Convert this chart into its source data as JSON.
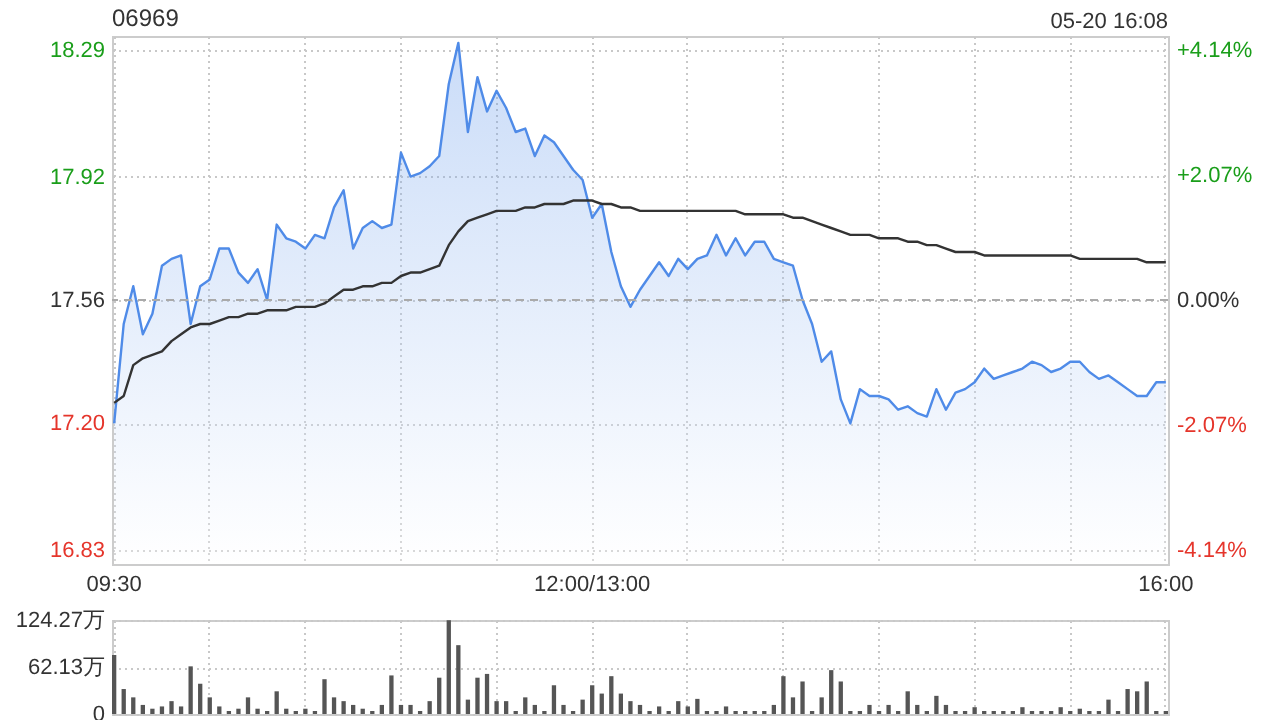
{
  "chart_data": [
    {
      "type": "line",
      "title": "06969",
      "annotations": [
        "05-20 16:08"
      ],
      "categories": [
        "09:30",
        null,
        null,
        null,
        null,
        null,
        null,
        null,
        null,
        null,
        null,
        null,
        null,
        null,
        null,
        null,
        null,
        null,
        null,
        null,
        null,
        null,
        null,
        null,
        null,
        null,
        null,
        null,
        null,
        null,
        null,
        null,
        null,
        null,
        null,
        null,
        null,
        null,
        null,
        null,
        null,
        null,
        null,
        null,
        null,
        null,
        null,
        null,
        null,
        null,
        "12:00/13:00",
        null,
        null,
        null,
        null,
        null,
        null,
        null,
        null,
        null,
        null,
        null,
        null,
        null,
        null,
        null,
        null,
        null,
        null,
        null,
        null,
        null,
        null,
        null,
        null,
        null,
        null,
        null,
        null,
        null,
        null,
        null,
        null,
        null,
        null,
        null,
        null,
        null,
        null,
        null,
        null,
        null,
        null,
        null,
        null,
        null,
        null,
        null,
        null,
        null,
        null,
        null,
        null,
        null,
        null,
        null,
        null,
        null,
        null,
        null,
        "16:00"
      ],
      "series": [
        {
          "type": "area",
          "color": "#4f8be8",
          "values": [
            17.2,
            17.49,
            17.6,
            17.46,
            17.52,
            17.66,
            17.68,
            17.69,
            17.49,
            17.6,
            17.62,
            17.71,
            17.71,
            17.64,
            17.61,
            17.65,
            17.56,
            17.78,
            17.74,
            17.73,
            17.71,
            17.75,
            17.74,
            17.83,
            17.88,
            17.71,
            17.77,
            17.79,
            17.77,
            17.78,
            17.99,
            17.92,
            17.93,
            17.95,
            17.98,
            18.19,
            18.31,
            18.05,
            18.21,
            18.11,
            18.17,
            18.12,
            18.05,
            18.06,
            17.98,
            18.04,
            18.02,
            17.98,
            17.94,
            17.91,
            17.8,
            17.84,
            17.7,
            17.6,
            17.54,
            17.59,
            17.63,
            17.67,
            17.63,
            17.68,
            17.65,
            17.68,
            17.69,
            17.75,
            17.69,
            17.74,
            17.69,
            17.73,
            17.73,
            17.68,
            17.67,
            17.66,
            17.56,
            17.49,
            17.38,
            17.41,
            17.27,
            17.2,
            17.3,
            17.28,
            17.28,
            17.27,
            17.24,
            17.25,
            17.23,
            17.22,
            17.3,
            17.24,
            17.29,
            17.3,
            17.32,
            17.36,
            17.33,
            17.34,
            17.35,
            17.36,
            17.38,
            17.37,
            17.35,
            17.36,
            17.38,
            17.38,
            17.35,
            17.33,
            17.34,
            17.32,
            17.3,
            17.28,
            17.28,
            17.32,
            17.32
          ]
        },
        {
          "type": "line",
          "color": "#333333",
          "values": [
            17.26,
            17.28,
            17.37,
            17.39,
            17.4,
            17.41,
            17.44,
            17.46,
            17.48,
            17.49,
            17.49,
            17.5,
            17.51,
            17.51,
            17.52,
            17.52,
            17.53,
            17.53,
            17.53,
            17.54,
            17.54,
            17.54,
            17.55,
            17.57,
            17.59,
            17.59,
            17.6,
            17.6,
            17.61,
            17.61,
            17.63,
            17.64,
            17.64,
            17.65,
            17.66,
            17.72,
            17.76,
            17.79,
            17.8,
            17.81,
            17.82,
            17.82,
            17.82,
            17.83,
            17.83,
            17.84,
            17.84,
            17.84,
            17.85,
            17.85,
            17.85,
            17.84,
            17.84,
            17.83,
            17.83,
            17.82,
            17.82,
            17.82,
            17.82,
            17.82,
            17.82,
            17.82,
            17.82,
            17.82,
            17.82,
            17.82,
            17.81,
            17.81,
            17.81,
            17.81,
            17.81,
            17.8,
            17.8,
            17.79,
            17.78,
            17.77,
            17.76,
            17.75,
            17.75,
            17.75,
            17.74,
            17.74,
            17.74,
            17.73,
            17.73,
            17.72,
            17.72,
            17.71,
            17.7,
            17.7,
            17.7,
            17.69,
            17.69,
            17.69,
            17.69,
            17.69,
            17.69,
            17.69,
            17.69,
            17.69,
            17.69,
            17.68,
            17.68,
            17.68,
            17.68,
            17.68,
            17.68,
            17.68,
            17.67,
            17.67,
            17.67
          ]
        }
      ],
      "ylim": [
        16.79,
        18.33
      ],
      "yticks": [
        16.83,
        {
          "value": 17.2,
          "label": "17.20"
        },
        17.56,
        17.92,
        18.29
      ],
      "y2lim": [
        -4.38,
        4.38
      ],
      "y2ticks": [
        {
          "value": -4.14,
          "label": "-4.14%"
        },
        {
          "value": -2.07,
          "label": "-2.07%"
        },
        {
          "value": 0,
          "label": "0.00%"
        },
        {
          "value": 2.07,
          "label": "+2.07%"
        },
        {
          "value": 4.14,
          "label": "+4.14%"
        }
      ],
      "ref_lines": [
        {
          "axis": "y",
          "value": 17.56,
          "line_style": "dashed",
          "color": "#aaaaaa"
        }
      ],
      "grid": true
    },
    {
      "type": "bar",
      "color": "#555555",
      "categories": [
        null,
        null,
        null,
        null,
        null,
        null,
        null,
        null,
        null,
        null,
        null,
        null,
        null,
        null,
        null,
        null,
        null,
        null,
        null,
        null,
        null,
        null,
        null,
        null,
        null,
        null,
        null,
        null,
        null,
        null,
        null,
        null,
        null,
        null,
        null,
        null,
        null,
        null,
        null,
        null,
        null,
        null,
        null,
        null,
        null,
        null,
        null,
        null,
        null,
        null,
        null,
        null,
        null,
        null,
        null,
        null,
        null,
        null,
        null,
        null,
        null,
        null,
        null,
        null,
        null,
        null,
        null,
        null,
        null,
        null,
        null,
        null,
        null,
        null,
        null,
        null,
        null,
        null,
        null,
        null,
        null,
        null,
        null,
        null,
        null,
        null,
        null,
        null,
        null,
        null,
        null,
        null,
        null,
        null,
        null,
        null,
        null,
        null,
        null,
        null,
        null,
        null,
        null,
        null,
        null,
        null,
        null,
        null,
        null,
        null,
        null
      ],
      "values": [
        78,
        33,
        22,
        12,
        7,
        10,
        17,
        10,
        63,
        40,
        22,
        10,
        4,
        7,
        22,
        7,
        4,
        30,
        7,
        4,
        7,
        4,
        46,
        22,
        17,
        12,
        7,
        4,
        12,
        51,
        12,
        12,
        4,
        17,
        48,
        124,
        91,
        19,
        48,
        53,
        17,
        17,
        4,
        22,
        12,
        4,
        38,
        12,
        4,
        19,
        38,
        27,
        50,
        27,
        17,
        12,
        4,
        10,
        4,
        17,
        10,
        20,
        4,
        4,
        10,
        4,
        4,
        4,
        4,
        12,
        50,
        22,
        43,
        4,
        22,
        58,
        43,
        4,
        4,
        12,
        4,
        12,
        4,
        30,
        12,
        4,
        24,
        12,
        4,
        4,
        9,
        4,
        4,
        4,
        4,
        9,
        4,
        4,
        4,
        9,
        4,
        7,
        4,
        4,
        19,
        4,
        33,
        30,
        43,
        4,
        4
      ],
      "ylim": [
        0,
        124.27
      ],
      "yticks": [
        0,
        {
          "value": 62.13,
          "label": "62.13万"
        },
        {
          "value": 124.27,
          "label": "124.27万"
        }
      ],
      "tick_labels": "y",
      "grid": true
    }
  ]
}
